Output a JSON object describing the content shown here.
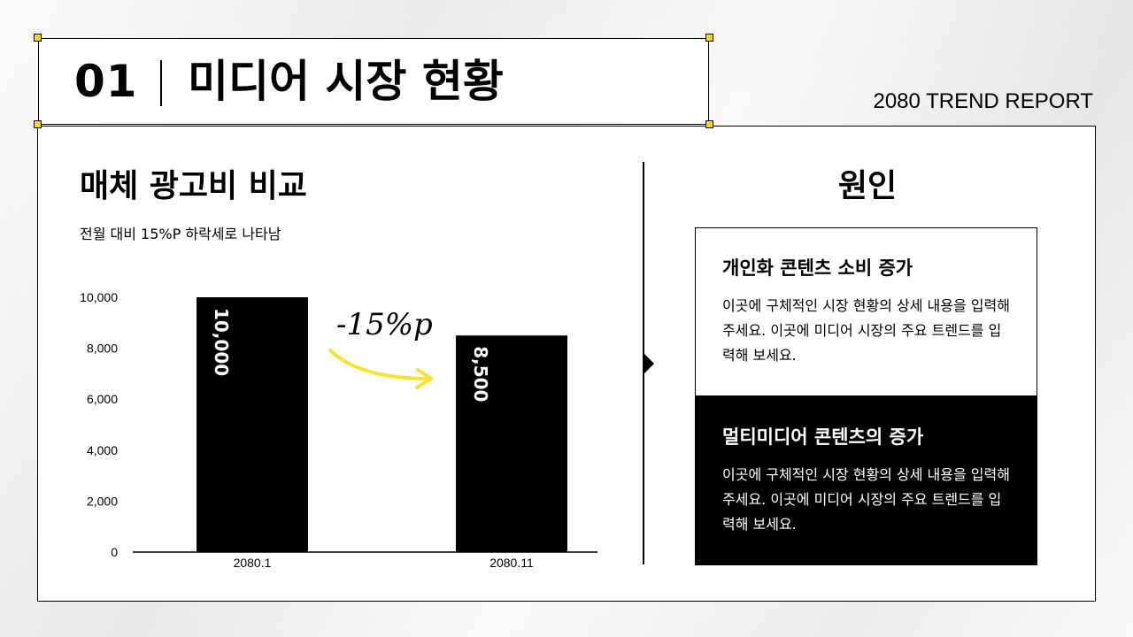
{
  "header": {
    "number": "01",
    "title": "미디어 시장 현황",
    "brand": "2080 TREND REPORT"
  },
  "left": {
    "section_title": "매체 광고비 비교",
    "subtitle": "전월 대비 15%P 하락세로 나타남",
    "annotation": "-15%p"
  },
  "chart_data": {
    "type": "bar",
    "title": "",
    "xlabel": "",
    "ylabel": "",
    "categories": [
      "2080.1",
      "2080.11"
    ],
    "values": [
      10000,
      8500
    ],
    "value_labels": [
      "10,000",
      "8,500"
    ],
    "y_tick_labels": [
      "0",
      "2,000",
      "4,000",
      "6,000",
      "8,000",
      "10,000"
    ],
    "ylim": [
      0,
      10000
    ],
    "grid": false,
    "bar_color": "#000000",
    "annotation_arrow_color": "#f5e232"
  },
  "right": {
    "title": "원인",
    "cards": [
      {
        "title": "개인화 콘텐츠 소비 증가",
        "body": "이곳에 구체적인 시장 현황의 상세 내용을 입력해 주세요. 이곳에 미디어 시장의 주요 트렌드를 입력해 보세요."
      },
      {
        "title": "멀티미디어 콘텐츠의 증가",
        "body": "이곳에 구체적인 시장 현황의 상세 내용을 입력해 주세요. 이곳에 미디어 시장의 주요 트렌드를 입력해 보세요."
      }
    ]
  },
  "colors": {
    "accent": "#f5d90a",
    "dark": "#000000",
    "light": "#ffffff"
  }
}
